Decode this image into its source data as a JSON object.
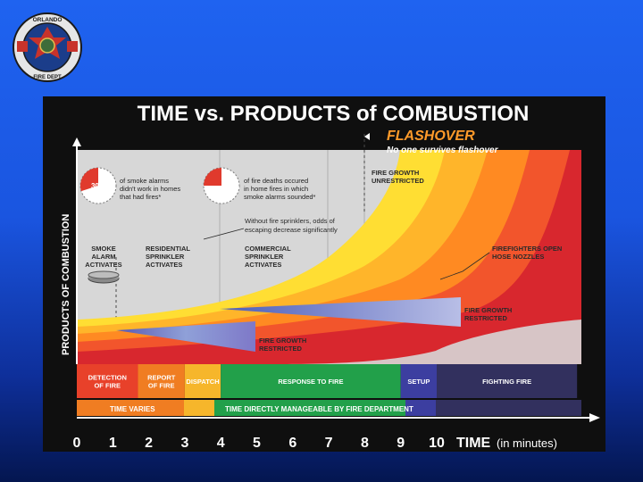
{
  "logo": {
    "top_text": "ORLANDO",
    "bottom_text": "FIRE DEPT"
  },
  "title": "TIME vs. PRODUCTS of COMBUSTION",
  "flashover": {
    "title": "FLASHOVER",
    "subtitle": "No one survives flashover"
  },
  "y_axis_label": "PRODUCTS OF COMBUSTION",
  "stat_smoke_alarms": {
    "percent": "30%",
    "percent_value": 30,
    "text": [
      "of smoke alarms",
      "didn't work in homes",
      "that had fires*"
    ]
  },
  "stat_fire_deaths": {
    "percent": "25%",
    "percent_value": 25,
    "text": [
      "of fire deaths occured",
      "in home fires in which",
      "smoke alarms sounded*"
    ]
  },
  "annotations": {
    "fire_growth_unrestricted": [
      "FIRE GROWTH",
      "UNRESTRICTED"
    ],
    "without_sprinklers": [
      "Without fire sprinklers, odds of",
      "escaping decrease significantly"
    ],
    "smoke_alarm": [
      "SMOKE",
      "ALARM",
      "ACTIVATES"
    ],
    "residential_sprinkler": [
      "RESIDENTIAL",
      "SPRINKLER",
      "ACTIVATES"
    ],
    "commercial_sprinkler": [
      "COMMERCIAL",
      "SPRINKLER",
      "ACTIVATES"
    ],
    "firefighters_open": [
      "FIREFIGHTERS OPEN",
      "HOSE NOZZLES"
    ],
    "fire_growth_restricted_right": [
      "FIRE GROWTH",
      "RESTRICTED"
    ],
    "fire_growth_restricted_left": [
      "FIRE GROWTH",
      "RESTRICTED"
    ]
  },
  "phases": [
    {
      "label": [
        "DETECTION",
        "OF FIRE"
      ],
      "start": 0,
      "end": 1.7,
      "color": "#e8412a"
    },
    {
      "label": [
        "REPORT",
        "OF FIRE"
      ],
      "start": 1.7,
      "end": 3.0,
      "color": "#f07d22"
    },
    {
      "label": [
        "DISPATCH"
      ],
      "start": 3.0,
      "end": 4.0,
      "color": "#f6b62b"
    },
    {
      "label": [
        "RESPONSE TO FIRE"
      ],
      "start": 4.0,
      "end": 9.0,
      "color": "#22a04a"
    },
    {
      "label": [
        "SETUP"
      ],
      "start": 9.0,
      "end": 10.0,
      "color": "#3c3ea0"
    },
    {
      "label": [
        "FIGHTING FIRE"
      ],
      "start": 10.0,
      "end": 13.9,
      "color": "#32305e"
    }
  ],
  "time_bar": {
    "left": "TIME VARIES",
    "right": "TIME DIRECTLY MANAGEABLE BY FIRE DEPARTMENT"
  },
  "x_axis": {
    "ticks": [
      "0",
      "1",
      "2",
      "3",
      "4",
      "5",
      "6",
      "7",
      "8",
      "9",
      "10"
    ],
    "label": "TIME",
    "unit": "(in minutes)"
  }
}
